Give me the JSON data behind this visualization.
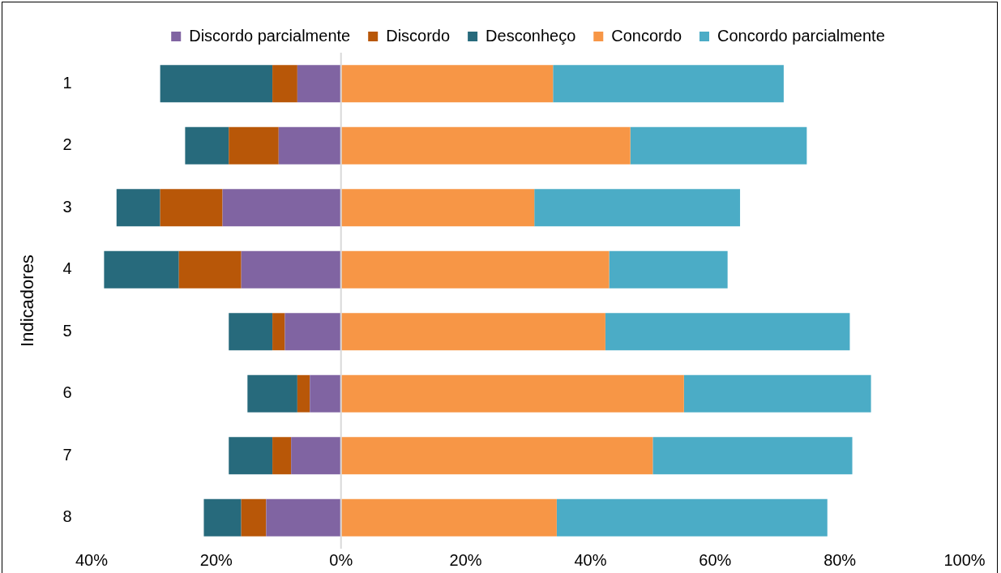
{
  "chart_data": {
    "type": "bar",
    "orientation": "horizontal",
    "stacked": true,
    "ylabel": "Indicadores",
    "categories": [
      "1",
      "2",
      "3",
      "4",
      "5",
      "6",
      "7",
      "8"
    ],
    "series": [
      {
        "name": "Discordo parcialmente",
        "color": "#8064a2",
        "values": [
          -7,
          -10,
          -19,
          -16,
          -9,
          -5,
          -8,
          -12
        ]
      },
      {
        "name": "Discordo",
        "color": "#b85708",
        "values": [
          -4,
          -8,
          -10,
          -10,
          -2,
          -2,
          -3,
          -4
        ]
      },
      {
        "name": "Desconheço",
        "color": "#276a7c",
        "values": [
          -18,
          -7,
          -7,
          -12,
          -7,
          -8,
          -7,
          -6
        ]
      },
      {
        "name": "Concordo",
        "color": "#f79646",
        "values": [
          34,
          46.4,
          31,
          43,
          42.4,
          55,
          50,
          34.6
        ]
      },
      {
        "name": "Concordo parcialmente",
        "color": "#4bacc6",
        "values": [
          37,
          28.3,
          33,
          19,
          39.2,
          30,
          32,
          43.4
        ]
      }
    ],
    "xlim": [
      -40,
      100
    ],
    "xticks": [
      {
        "value": -40,
        "label": "40%"
      },
      {
        "value": -20,
        "label": "20%"
      },
      {
        "value": 0,
        "label": "0%"
      },
      {
        "value": 20,
        "label": "20%"
      },
      {
        "value": 40,
        "label": "40%"
      },
      {
        "value": 60,
        "label": "60%"
      },
      {
        "value": 80,
        "label": "80%"
      },
      {
        "value": 100,
        "label": "100%"
      }
    ],
    "ref_lines": [
      {
        "axis": "x",
        "value": 0,
        "color": "#d9d9d9"
      }
    ],
    "grid": false,
    "legend": "top"
  }
}
